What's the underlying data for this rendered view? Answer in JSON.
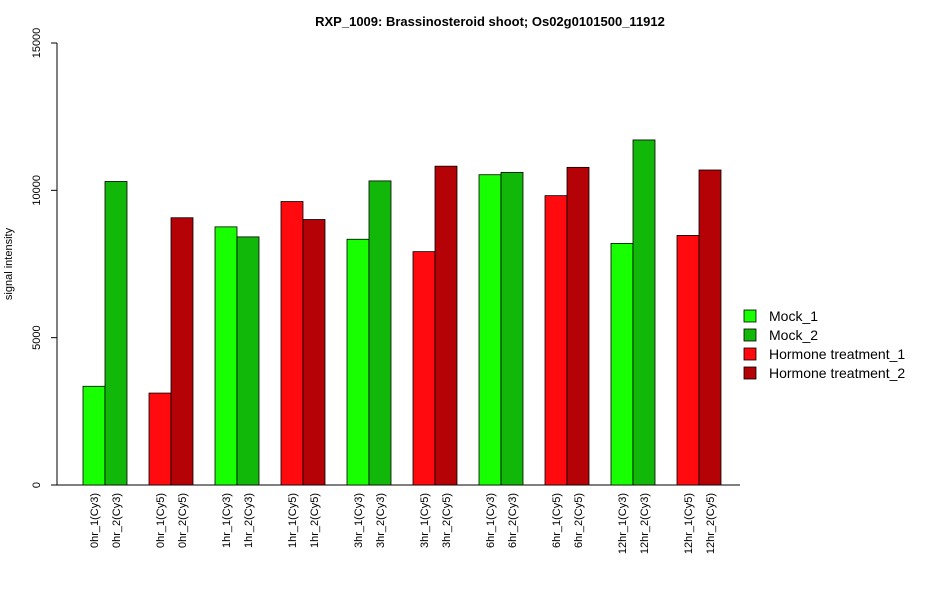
{
  "chart_data": {
    "type": "bar",
    "title": "RXP_1009: Brassinosteroid shoot; Os02g0101500_11912",
    "ylabel": "signal intensity",
    "xlabel": "",
    "ylim": [
      0,
      15000
    ],
    "yticks": [
      0,
      5000,
      10000,
      15000
    ],
    "grid": false,
    "legend_position": "right",
    "groups": [
      "0hr",
      "0hr",
      "1hr",
      "1hr",
      "3hr",
      "3hr",
      "6hr",
      "6hr",
      "12hr",
      "12hr"
    ],
    "bars": [
      {
        "label": "0hr_1(Cy3)",
        "value": 3350,
        "series": "Mock_1"
      },
      {
        "label": "0hr_2(Cy3)",
        "value": 10300,
        "series": "Mock_2"
      },
      {
        "label": "0hr_1(Cy5)",
        "value": 3120,
        "series": "Hormone treatment_1"
      },
      {
        "label": "0hr_2(Cy5)",
        "value": 9070,
        "series": "Hormone treatment_2"
      },
      {
        "label": "1hr_1(Cy3)",
        "value": 8760,
        "series": "Mock_1"
      },
      {
        "label": "1hr_2(Cy3)",
        "value": 8420,
        "series": "Mock_2"
      },
      {
        "label": "1hr_1(Cy5)",
        "value": 9620,
        "series": "Hormone treatment_1"
      },
      {
        "label": "1hr_2(Cy5)",
        "value": 9010,
        "series": "Hormone treatment_2"
      },
      {
        "label": "3hr_1(Cy3)",
        "value": 8340,
        "series": "Mock_1"
      },
      {
        "label": "3hr_2(Cy3)",
        "value": 10320,
        "series": "Mock_2"
      },
      {
        "label": "3hr_1(Cy5)",
        "value": 7920,
        "series": "Hormone treatment_1"
      },
      {
        "label": "3hr_2(Cy5)",
        "value": 10820,
        "series": "Hormone treatment_2"
      },
      {
        "label": "6hr_1(Cy3)",
        "value": 10530,
        "series": "Mock_1"
      },
      {
        "label": "6hr_2(Cy3)",
        "value": 10610,
        "series": "Mock_2"
      },
      {
        "label": "6hr_1(Cy5)",
        "value": 9820,
        "series": "Hormone treatment_1"
      },
      {
        "label": "6hr_2(Cy5)",
        "value": 10780,
        "series": "Hormone treatment_2"
      },
      {
        "label": "12hr_1(Cy3)",
        "value": 8200,
        "series": "Mock_1"
      },
      {
        "label": "12hr_2(Cy3)",
        "value": 11710,
        "series": "Mock_2"
      },
      {
        "label": "12hr_1(Cy5)",
        "value": 8470,
        "series": "Hormone treatment_1"
      },
      {
        "label": "12hr_2(Cy5)",
        "value": 10690,
        "series": "Hormone treatment_2"
      }
    ],
    "series": [
      {
        "name": "Mock_1",
        "color": "#17ff00"
      },
      {
        "name": "Mock_2",
        "color": "#11b809"
      },
      {
        "name": "Hormone treatment_1",
        "color": "#ff0a0f"
      },
      {
        "name": "Hormone treatment_2",
        "color": "#b50207"
      }
    ]
  }
}
